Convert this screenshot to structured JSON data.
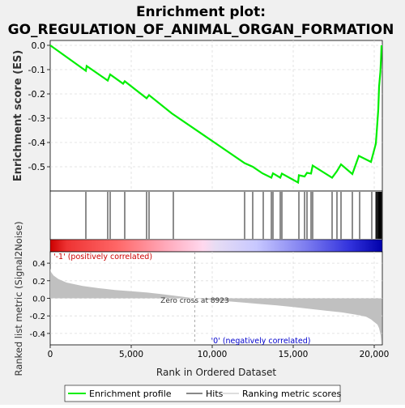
{
  "title_line1": "Enrichment plot:",
  "title_line2": "GO_REGULATION_OF_ANIMAL_ORGAN_FORMATION",
  "colors": {
    "es_line": "#00ee00",
    "hits": "#000000",
    "metric_fill": "#c0c0c0",
    "pos_label": "#cc0000",
    "neg_label": "#0000cc",
    "zero_cross_line": "#999999",
    "grid": "#dddddd"
  },
  "legend": {
    "items": [
      {
        "label": "Enrichment profile",
        "color": "#00ee00",
        "style": "line"
      },
      {
        "label": "Hits",
        "color": "#888888",
        "style": "line"
      },
      {
        "label": "Ranking metric scores",
        "color": "#dddddd",
        "style": "line"
      }
    ]
  },
  "chart_data": [
    {
      "type": "line",
      "name": "enrichment-score",
      "ylabel": "Enrichment score (ES)",
      "xlim": [
        0,
        20500
      ],
      "ylim": [
        -0.6,
        0.02
      ],
      "yticks": [
        0.0,
        -0.1,
        -0.2,
        -0.3,
        -0.4,
        -0.5
      ],
      "ytick_labels": [
        "0.0",
        "-0.1",
        "-0.2",
        "-0.3",
        "-0.4",
        "-0.5"
      ],
      "grid": true,
      "x": [
        0,
        2200,
        2250,
        3550,
        3700,
        4500,
        4600,
        5950,
        6100,
        7500,
        12000,
        12500,
        13100,
        13650,
        13750,
        14200,
        14300,
        15300,
        15350,
        15700,
        15850,
        16100,
        16200,
        17400,
        17700,
        17950,
        18650,
        19050,
        19800,
        20100,
        20150,
        20250,
        20300,
        20380,
        20420,
        20450
      ],
      "y": [
        0.0,
        -0.105,
        -0.085,
        -0.145,
        -0.12,
        -0.158,
        -0.148,
        -0.218,
        -0.205,
        -0.28,
        -0.485,
        -0.5,
        -0.527,
        -0.545,
        -0.527,
        -0.545,
        -0.528,
        -0.565,
        -0.535,
        -0.54,
        -0.525,
        -0.528,
        -0.495,
        -0.545,
        -0.518,
        -0.49,
        -0.53,
        -0.455,
        -0.48,
        -0.405,
        -0.36,
        -0.265,
        -0.17,
        -0.11,
        -0.055,
        0.0
      ]
    },
    {
      "type": "scatter",
      "name": "hits",
      "x": [
        2200,
        3550,
        3700,
        4600,
        5950,
        6100,
        7600,
        12000,
        12500,
        13150,
        13650,
        13750,
        14200,
        14300,
        15350,
        15700,
        15850,
        16100,
        16200,
        17400,
        17700,
        17950,
        18650,
        19100,
        19850,
        20100,
        20150,
        20200,
        20250,
        20280,
        20310,
        20340,
        20370,
        20400,
        20430,
        20450
      ]
    },
    {
      "type": "area",
      "name": "ranking-metric",
      "xlabel": "Rank in Ordered Dataset",
      "ylabel": "Ranked list metric (Signal2Noise)",
      "xlim": [
        0,
        20500
      ],
      "ylim": [
        -0.53,
        0.53
      ],
      "xticks": [
        0,
        5000,
        10000,
        15000,
        20000
      ],
      "xtick_labels": [
        "0",
        "5,000",
        "10,000",
        "15,000",
        "20,000"
      ],
      "yticks": [
        0.4,
        0.2,
        0.0,
        -0.2,
        -0.4
      ],
      "ytick_labels": [
        "0.4",
        "0.2",
        "0.0",
        "-0.2",
        "-0.4"
      ],
      "grid": true,
      "x": [
        0,
        50,
        200,
        500,
        1000,
        2000,
        3000,
        4000,
        5000,
        6000,
        7000,
        8000,
        8923,
        10000,
        11000,
        12000,
        13000,
        14000,
        15000,
        16000,
        17000,
        18000,
        19000,
        19500,
        19800,
        20000,
        20200,
        20300,
        20400,
        20450
      ],
      "values": [
        0.34,
        0.3,
        0.26,
        0.22,
        0.18,
        0.14,
        0.115,
        0.095,
        0.08,
        0.065,
        0.045,
        0.022,
        0.0,
        -0.02,
        -0.035,
        -0.05,
        -0.065,
        -0.08,
        -0.1,
        -0.12,
        -0.14,
        -0.16,
        -0.19,
        -0.21,
        -0.24,
        -0.27,
        -0.3,
        -0.34,
        -0.42,
        -0.52
      ],
      "annotations": {
        "positive": "'-1' (positively correlated)",
        "negative": "'0' (negatively correlated)",
        "zero_cross": "Zero cross at 8923",
        "zero_cross_x": 8923
      }
    }
  ]
}
